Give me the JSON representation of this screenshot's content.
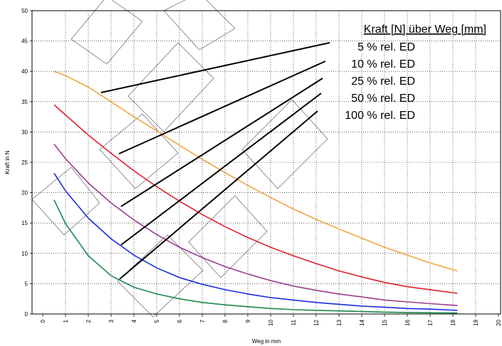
{
  "chart_data": {
    "type": "line",
    "title": "",
    "xlabel": "Weg in mm",
    "ylabel": "Kraft in N",
    "xlim": [
      0,
      20
    ],
    "ylim": [
      0,
      50
    ],
    "x_ticks": [
      0,
      1,
      2,
      3,
      4,
      5,
      6,
      7,
      8,
      9,
      10,
      11,
      12,
      13,
      14,
      15,
      16,
      17,
      18,
      19,
      20
    ],
    "y_ticks": [
      0,
      5,
      10,
      15,
      20,
      25,
      30,
      35,
      40,
      45,
      50
    ],
    "grid": true,
    "legend": {
      "title": "Kraft [N] über Weg [mm]",
      "placement": "top-right"
    },
    "series": [
      {
        "name": "5 % rel. ED",
        "color": "#F5A442",
        "x": [
          0.5,
          1,
          2,
          3,
          4,
          5,
          6,
          7,
          8,
          9,
          10,
          11,
          12,
          13,
          14,
          15,
          16,
          17,
          18.2
        ],
        "y": [
          40.0,
          39.3,
          37.4,
          35.0,
          32.5,
          30.2,
          27.8,
          25.5,
          23.3,
          21.2,
          19.2,
          17.3,
          15.6,
          14.0,
          12.5,
          11.0,
          9.7,
          8.4,
          7.1
        ]
      },
      {
        "name": "10 % rel. ED",
        "color": "#E0202E",
        "x": [
          0.5,
          1,
          2,
          3,
          4,
          5,
          6,
          7,
          8,
          9,
          10,
          11,
          12,
          13,
          14,
          15,
          16,
          17,
          18.2
        ],
        "y": [
          34.5,
          32.8,
          29.5,
          26.5,
          23.6,
          21.0,
          18.6,
          16.4,
          14.4,
          12.6,
          11.0,
          9.6,
          8.3,
          7.1,
          6.1,
          5.2,
          4.5,
          4.0,
          3.4
        ]
      },
      {
        "name": "25 % rel. ED",
        "color": "#9B3D8E",
        "x": [
          0.5,
          1,
          2,
          3,
          4,
          5,
          6,
          7,
          8,
          9,
          10,
          11,
          12,
          13,
          14,
          15,
          16,
          17,
          18.2
        ],
        "y": [
          28.0,
          25.6,
          21.6,
          18.3,
          15.5,
          13.1,
          11.0,
          9.3,
          7.8,
          6.6,
          5.5,
          4.6,
          3.9,
          3.3,
          2.8,
          2.3,
          2.0,
          1.7,
          1.4
        ]
      },
      {
        "name": "50 % rel. ED",
        "color": "#1A2CE0",
        "x": [
          0.5,
          1,
          2,
          3,
          4,
          5,
          6,
          7,
          8,
          9,
          10,
          11,
          12,
          13,
          14,
          15,
          16,
          17,
          18.2
        ],
        "y": [
          23.2,
          20.3,
          15.8,
          12.4,
          9.7,
          7.6,
          6.0,
          4.9,
          4.0,
          3.3,
          2.7,
          2.3,
          1.9,
          1.6,
          1.3,
          1.1,
          0.9,
          0.8,
          0.6
        ]
      },
      {
        "name": "100 % rel. ED",
        "color": "#1A8A4A",
        "x": [
          0.5,
          1,
          2,
          3,
          4,
          5,
          6,
          7,
          8,
          9,
          10,
          11,
          12,
          13,
          14,
          15,
          16,
          17,
          18.2
        ],
        "y": [
          18.8,
          14.9,
          9.6,
          6.3,
          4.4,
          3.3,
          2.5,
          1.9,
          1.5,
          1.2,
          0.9,
          0.7,
          0.6,
          0.5,
          0.4,
          0.3,
          0.25,
          0.2,
          0.15
        ]
      }
    ]
  }
}
